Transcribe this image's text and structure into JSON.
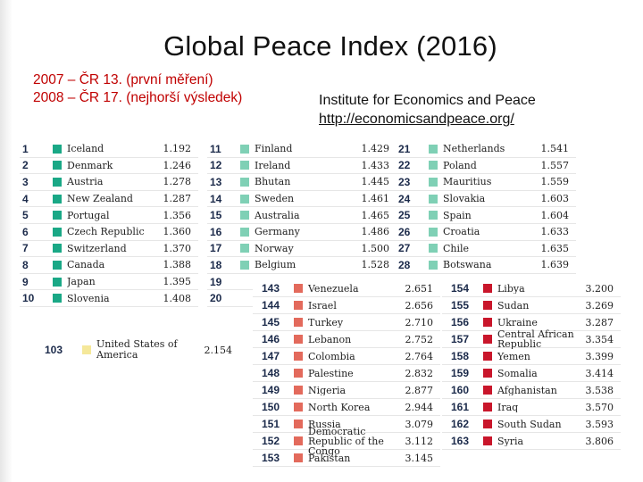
{
  "title": "Global Peace Index (2016)",
  "czech_notes": [
    "2007 – ČR 13.  (první měření)",
    "2008 – ČR 17. (nejhorší výsledek)"
  ],
  "institute": "Institute for Economics and Peace",
  "url": "http://economicsandpeace.org/",
  "colors": {
    "most_peaceful": "#1aa886",
    "high_peace": "#7fd0b5",
    "medium_peace": "#f5e89a",
    "low_peace": "#e36a5c",
    "very_low_peace": "#c9162b"
  },
  "top_columns": [
    [
      {
        "rank": "1",
        "country": "Iceland",
        "score": "1.192"
      },
      {
        "rank": "2",
        "country": "Denmark",
        "score": "1.246"
      },
      {
        "rank": "3",
        "country": "Austria",
        "score": "1.278"
      },
      {
        "rank": "4",
        "country": "New Zealand",
        "score": "1.287"
      },
      {
        "rank": "5",
        "country": "Portugal",
        "score": "1.356"
      },
      {
        "rank": "6",
        "country": "Czech Republic",
        "score": "1.360"
      },
      {
        "rank": "7",
        "country": "Switzerland",
        "score": "1.370"
      },
      {
        "rank": "8",
        "country": "Canada",
        "score": "1.388"
      },
      {
        "rank": "9",
        "country": "Japan",
        "score": "1.395"
      },
      {
        "rank": "10",
        "country": "Slovenia",
        "score": "1.408"
      }
    ],
    [
      {
        "rank": "11",
        "country": "Finland",
        "score": "1.429"
      },
      {
        "rank": "12",
        "country": "Ireland",
        "score": "1.433"
      },
      {
        "rank": "13",
        "country": "Bhutan",
        "score": "1.445"
      },
      {
        "rank": "14",
        "country": "Sweden",
        "score": "1.461"
      },
      {
        "rank": "15",
        "country": "Australia",
        "score": "1.465"
      },
      {
        "rank": "16",
        "country": "Germany",
        "score": "1.486"
      },
      {
        "rank": "17",
        "country": "Norway",
        "score": "1.500"
      },
      {
        "rank": "18",
        "country": "Belgium",
        "score": "1.528"
      },
      {
        "rank": "19",
        "country": "",
        "score": ""
      },
      {
        "rank": "20",
        "country": "",
        "score": ""
      }
    ],
    [
      {
        "rank": "21",
        "country": "Netherlands",
        "score": "1.541"
      },
      {
        "rank": "22",
        "country": "Poland",
        "score": "1.557"
      },
      {
        "rank": "23",
        "country": "Mauritius",
        "score": "1.559"
      },
      {
        "rank": "24",
        "country": "Slovakia",
        "score": "1.603"
      },
      {
        "rank": "25",
        "country": "Spain",
        "score": "1.604"
      },
      {
        "rank": "26",
        "country": "Croatia",
        "score": "1.633"
      },
      {
        "rank": "27",
        "country": "Chile",
        "score": "1.635"
      },
      {
        "rank": "28",
        "country": "Botswana",
        "score": "1.639"
      }
    ]
  ],
  "usa": {
    "rank": "103",
    "country": "United States of America",
    "score": "2.154"
  },
  "bottom_columns": [
    [
      {
        "rank": "143",
        "country": "Venezuela",
        "score": "2.651"
      },
      {
        "rank": "144",
        "country": "Israel",
        "score": "2.656"
      },
      {
        "rank": "145",
        "country": "Turkey",
        "score": "2.710"
      },
      {
        "rank": "146",
        "country": "Lebanon",
        "score": "2.752"
      },
      {
        "rank": "147",
        "country": "Colombia",
        "score": "2.764"
      },
      {
        "rank": "148",
        "country": "Palestine",
        "score": "2.832"
      },
      {
        "rank": "149",
        "country": "Nigeria",
        "score": "2.877"
      },
      {
        "rank": "150",
        "country": "North Korea",
        "score": "2.944"
      },
      {
        "rank": "151",
        "country": "Russia",
        "score": "3.079"
      },
      {
        "rank": "152",
        "country": "Democratic Republic of the Congo",
        "score": "3.112"
      },
      {
        "rank": "153",
        "country": "Pakistan",
        "score": "3.145"
      }
    ],
    [
      {
        "rank": "154",
        "country": "Libya",
        "score": "3.200"
      },
      {
        "rank": "155",
        "country": "Sudan",
        "score": "3.269"
      },
      {
        "rank": "156",
        "country": "Ukraine",
        "score": "3.287"
      },
      {
        "rank": "157",
        "country": "Central African Republic",
        "score": "3.354"
      },
      {
        "rank": "158",
        "country": "Yemen",
        "score": "3.399"
      },
      {
        "rank": "159",
        "country": "Somalia",
        "score": "3.414"
      },
      {
        "rank": "160",
        "country": "Afghanistan",
        "score": "3.538"
      },
      {
        "rank": "161",
        "country": "Iraq",
        "score": "3.570"
      },
      {
        "rank": "162",
        "country": "South Sudan",
        "score": "3.593"
      },
      {
        "rank": "163",
        "country": "Syria",
        "score": "3.806"
      }
    ]
  ]
}
